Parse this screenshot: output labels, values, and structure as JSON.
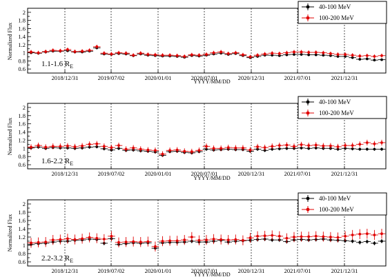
{
  "figure": {
    "xlabel": "YYYY/MM/DD",
    "ylabel": "Normalized Flux"
  },
  "chart_data": [
    {
      "type": "scatter",
      "region_label": "1.1-1.6 R",
      "region_sub": "E",
      "ylim": [
        0.5,
        2.1
      ],
      "yticks": [
        "0.6",
        "0.8",
        "1",
        "1.2",
        "1.4",
        "1.6",
        "1.8",
        "2"
      ],
      "xticks": [
        "2018/12/31",
        "2019/07/02",
        "2020/01/01",
        "2020/07/01",
        "2020/12/31",
        "2021/07/01",
        "2021/12/31"
      ],
      "legend": [
        "40-100 MeV",
        "100-200 MeV"
      ],
      "colors": [
        "#000000",
        "#e00000"
      ],
      "grid": "vertical dashed at tick dates",
      "series": [
        {
          "name": "40-100 MeV",
          "err": 0.03,
          "values": [
            1.0,
            0.99,
            1.02,
            1.04,
            1.04,
            1.05,
            1.02,
            1.02,
            1.04,
            1.12,
            0.97,
            0.96,
            0.98,
            0.97,
            0.93,
            0.97,
            0.94,
            0.93,
            0.92,
            0.92,
            0.91,
            0.89,
            0.93,
            0.92,
            0.94,
            0.97,
            0.99,
            0.96,
            0.98,
            0.93,
            0.88,
            0.91,
            0.94,
            0.94,
            0.93,
            0.95,
            0.96,
            0.96,
            0.95,
            0.95,
            0.94,
            0.93,
            0.91,
            0.91,
            0.88,
            0.84,
            0.85,
            0.82,
            0.83
          ]
        },
        {
          "name": "100-200 MeV",
          "err": 0.05,
          "values": [
            1.02,
            1.0,
            1.03,
            1.06,
            1.05,
            1.08,
            1.03,
            1.04,
            1.06,
            1.15,
            0.99,
            0.97,
            1.0,
            0.99,
            0.94,
            0.99,
            0.96,
            0.95,
            0.94,
            0.94,
            0.93,
            0.91,
            0.95,
            0.94,
            0.96,
            1.0,
            1.02,
            0.98,
            1.0,
            0.95,
            0.9,
            0.94,
            0.97,
            0.99,
            0.98,
            1.0,
            1.02,
            1.02,
            1.01,
            1.01,
            1.0,
            0.98,
            0.96,
            0.96,
            0.94,
            0.92,
            0.93,
            0.91,
            0.93
          ]
        }
      ]
    },
    {
      "type": "scatter",
      "region_label": "1.6-2.2 R",
      "region_sub": "E",
      "ylim": [
        0.5,
        2.1
      ],
      "yticks": [
        "0.6",
        "0.8",
        "1",
        "1.2",
        "1.4",
        "1.6",
        "1.8",
        "2"
      ],
      "xticks": [
        "2018/12/31",
        "2019/07/02",
        "2020/01/01",
        "2020/07/01",
        "2020/12/31",
        "2021/07/01",
        "2021/12/31"
      ],
      "legend": [
        "40-100 MeV",
        "100-200 MeV"
      ],
      "colors": [
        "#000000",
        "#e00000"
      ],
      "grid": "vertical dashed at tick dates",
      "series": [
        {
          "name": "40-100 MeV",
          "err": 0.04,
          "values": [
            1.01,
            1.03,
            1.0,
            1.02,
            1.01,
            1.01,
            1.0,
            1.01,
            1.03,
            1.04,
            0.99,
            0.96,
            1.0,
            0.95,
            0.96,
            0.94,
            0.93,
            0.91,
            0.83,
            0.92,
            0.93,
            0.9,
            0.89,
            0.92,
            0.98,
            0.96,
            0.97,
            0.98,
            0.97,
            0.97,
            0.93,
            0.98,
            0.95,
            0.98,
            0.99,
            1.0,
            1.0,
            1.01,
            1.0,
            1.01,
            1.0,
            1.0,
            0.98,
            1.0,
            0.99,
            0.98,
            0.98,
            0.98,
            0.98
          ]
        },
        {
          "name": "100-200 MeV",
          "err": 0.07,
          "values": [
            1.03,
            1.07,
            1.03,
            1.05,
            1.05,
            1.06,
            1.04,
            1.06,
            1.1,
            1.11,
            1.05,
            1.02,
            1.07,
            0.98,
            1.01,
            0.98,
            0.96,
            0.95,
            0.86,
            0.95,
            0.96,
            0.93,
            0.92,
            0.95,
            1.05,
            1.0,
            1.0,
            1.02,
            1.01,
            1.01,
            0.96,
            1.04,
            1.02,
            1.05,
            1.07,
            1.08,
            1.05,
            1.09,
            1.07,
            1.08,
            1.06,
            1.06,
            1.04,
            1.07,
            1.07,
            1.1,
            1.14,
            1.11,
            1.14
          ]
        }
      ]
    },
    {
      "type": "scatter",
      "region_label": "2.2-3.2 R",
      "region_sub": "E",
      "ylim": [
        0.5,
        2.1
      ],
      "yticks": [
        "0.6",
        "0.8",
        "1",
        "1.2",
        "1.4",
        "1.6",
        "1.8",
        "2"
      ],
      "xticks": [
        "2018/12/31",
        "2019/07/02",
        "2020/01/01",
        "2020/07/01",
        "2020/12/31",
        "2021/07/01",
        "2021/12/31"
      ],
      "legend": [
        "40-100 MeV",
        "100-200 MeV"
      ],
      "colors": [
        "#000000",
        "#e00000"
      ],
      "grid": "vertical dashed at tick dates",
      "series": [
        {
          "name": "40-100 MeV",
          "err": 0.05,
          "values": [
            1.02,
            1.04,
            1.05,
            1.08,
            1.1,
            1.1,
            1.12,
            1.13,
            1.15,
            1.14,
            1.05,
            1.16,
            1.02,
            1.04,
            1.06,
            1.05,
            1.06,
            0.93,
            1.06,
            1.07,
            1.07,
            1.08,
            1.1,
            1.08,
            1.08,
            1.1,
            1.12,
            1.08,
            1.1,
            1.11,
            1.12,
            1.14,
            1.15,
            1.13,
            1.13,
            1.09,
            1.13,
            1.14,
            1.13,
            1.14,
            1.15,
            1.13,
            1.12,
            1.11,
            1.1,
            1.07,
            1.09,
            1.05,
            1.1
          ]
        },
        {
          "name": "100-200 MeV",
          "err": 0.12,
          "values": [
            1.06,
            1.07,
            1.08,
            1.13,
            1.14,
            1.16,
            1.14,
            1.16,
            1.19,
            1.17,
            1.15,
            1.22,
            1.07,
            1.08,
            1.09,
            1.08,
            1.09,
            0.97,
            1.1,
            1.11,
            1.11,
            1.13,
            1.2,
            1.12,
            1.13,
            1.15,
            1.14,
            1.13,
            1.14,
            1.12,
            1.18,
            1.22,
            1.23,
            1.24,
            1.22,
            1.17,
            1.2,
            1.21,
            1.21,
            1.22,
            1.21,
            1.2,
            1.19,
            1.22,
            1.25,
            1.27,
            1.28,
            1.25,
            1.28
          ]
        }
      ]
    }
  ]
}
